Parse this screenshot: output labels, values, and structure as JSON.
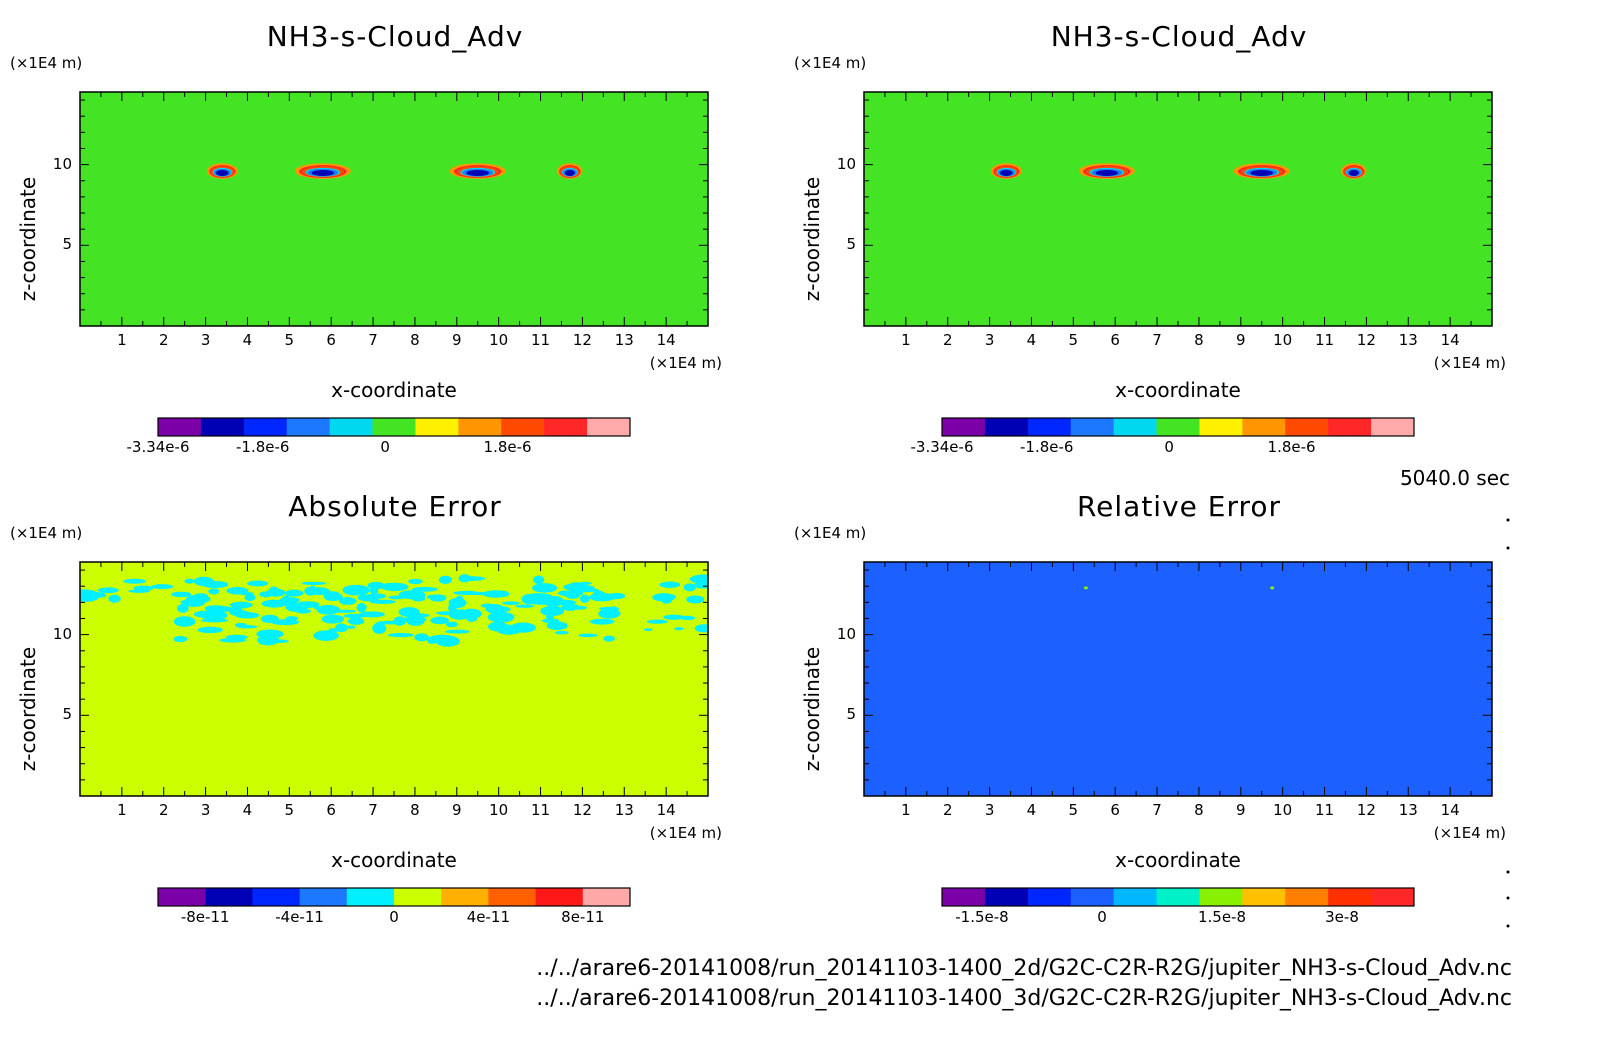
{
  "time_label": "5040.0 sec",
  "files": [
    "../../arare6-20141008/run_20141103-1400_2d/G2C-C2R-R2G/jupiter_NH3-s-Cloud_Adv.nc",
    "../../arare6-20141008/run_20141103-1400_3d/G2C-C2R-R2G/jupiter_NH3-s-Cloud_Adv.nc"
  ],
  "chart_data": [
    {
      "type": "heatmap",
      "title": "NH3-s-Cloud_Adv",
      "xlabel": "x-coordinate",
      "ylabel": "z-coordinate",
      "x_unit": "(×1E4 m)",
      "z_unit": "(×1E4 m)",
      "xlim": [
        0,
        15
      ],
      "zlim": [
        0,
        14.5
      ],
      "x_ticks": [
        "1",
        "2",
        "3",
        "4",
        "5",
        "6",
        "7",
        "8",
        "9",
        "10",
        "11",
        "12",
        "13",
        "14"
      ],
      "z_ticks": [
        "5",
        "10"
      ],
      "background_level": 0,
      "colorbar": {
        "colors": [
          "#7b00a8",
          "#0000b4",
          "#0026ff",
          "#1c78ff",
          "#00d8f0",
          "#44e424",
          "#fff000",
          "#ff9600",
          "#ff4a00",
          "#ff2828",
          "#ffaaaa"
        ],
        "tick_labels": [
          "-3.34e-6",
          "-1.8e-6",
          "0",
          "1.8e-6"
        ],
        "tick_values": [
          -3.34e-06,
          -1.8e-06,
          0,
          1.8e-06
        ],
        "range": [
          -3.34e-06,
          3.6e-06
        ]
      }
    },
    {
      "type": "heatmap",
      "title": "NH3-s-Cloud_Adv",
      "xlabel": "x-coordinate",
      "ylabel": "z-coordinate",
      "x_unit": "(×1E4 m)",
      "z_unit": "(×1E4 m)",
      "xlim": [
        0,
        15
      ],
      "zlim": [
        0,
        14.5
      ],
      "x_ticks": [
        "1",
        "2",
        "3",
        "4",
        "5",
        "6",
        "7",
        "8",
        "9",
        "10",
        "11",
        "12",
        "13",
        "14"
      ],
      "z_ticks": [
        "5",
        "10"
      ],
      "background_level": 0,
      "colorbar": {
        "colors": [
          "#7b00a8",
          "#0000b4",
          "#0026ff",
          "#1c78ff",
          "#00d8f0",
          "#44e424",
          "#fff000",
          "#ff9600",
          "#ff4a00",
          "#ff2828",
          "#ffaaaa"
        ],
        "tick_labels": [
          "-3.34e-6",
          "-1.8e-6",
          "0",
          "1.8e-6"
        ],
        "tick_values": [
          -3.34e-06,
          -1.8e-06,
          0,
          1.8e-06
        ],
        "range": [
          -3.34e-06,
          3.6e-06
        ]
      }
    },
    {
      "type": "heatmap",
      "title": "Absolute Error",
      "xlabel": "x-coordinate",
      "ylabel": "z-coordinate",
      "x_unit": "(×1E4 m)",
      "z_unit": "(×1E4 m)",
      "xlim": [
        0,
        15
      ],
      "zlim": [
        0,
        14.5
      ],
      "x_ticks": [
        "1",
        "2",
        "3",
        "4",
        "5",
        "6",
        "7",
        "8",
        "9",
        "10",
        "11",
        "12",
        "13",
        "14"
      ],
      "z_ticks": [
        "5",
        "10"
      ],
      "background_level": 0,
      "colorbar": {
        "colors": [
          "#7b00a8",
          "#0000b4",
          "#0026ff",
          "#1c78ff",
          "#00f0ff",
          "#ccff00",
          "#ffb000",
          "#ff6000",
          "#ff1818",
          "#ffa8a8"
        ],
        "tick_labels": [
          "-8e-11",
          "-4e-11",
          "0",
          "4e-11",
          "8e-11"
        ],
        "tick_values": [
          -8e-11,
          -4e-11,
          0,
          4e-11,
          8e-11
        ],
        "range": [
          -1e-10,
          1e-10
        ]
      }
    },
    {
      "type": "heatmap",
      "title": "Relative Error",
      "xlabel": "x-coordinate",
      "ylabel": "z-coordinate",
      "x_unit": "(×1E4 m)",
      "z_unit": "(×1E4 m)",
      "xlim": [
        0,
        15
      ],
      "zlim": [
        0,
        14.5
      ],
      "x_ticks": [
        "1",
        "2",
        "3",
        "4",
        "5",
        "6",
        "7",
        "8",
        "9",
        "10",
        "11",
        "12",
        "13",
        "14"
      ],
      "z_ticks": [
        "5",
        "10"
      ],
      "background_level": 0,
      "colorbar": {
        "colors": [
          "#7b00a8",
          "#0000b4",
          "#0026ff",
          "#1c60ff",
          "#00b8ff",
          "#00f0c8",
          "#88f000",
          "#ffc000",
          "#ff8000",
          "#ff3000",
          "#ff2828"
        ],
        "tick_labels": [
          "-1.5e-8",
          "0",
          "1.5e-8",
          "3e-8"
        ],
        "tick_values": [
          -1.5e-08,
          0,
          1.5e-08,
          3e-08
        ],
        "range": [
          -2e-08,
          3.9e-08
        ]
      }
    }
  ]
}
